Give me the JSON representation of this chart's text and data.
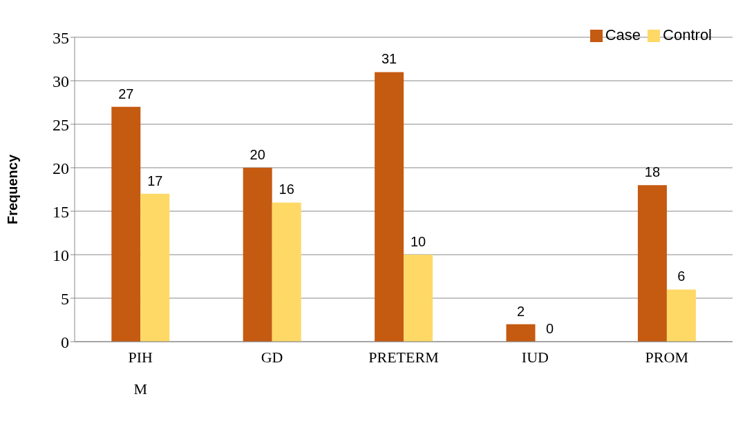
{
  "chart_data": {
    "type": "bar",
    "ylabel": "Frequency",
    "categories": [
      "PIH M",
      "GD",
      "PRETERM",
      "IUD",
      "PROM"
    ],
    "series": [
      {
        "name": "Case",
        "color": "#c55a11",
        "values": [
          27,
          20,
          31,
          2,
          18
        ]
      },
      {
        "name": "Control",
        "color": "#ffd966",
        "values": [
          17,
          16,
          10,
          0,
          6
        ]
      }
    ],
    "ylim": [
      0,
      35
    ],
    "yticks": [
      0,
      5,
      10,
      15,
      20,
      25,
      30,
      35
    ],
    "grid": "y",
    "legend": "top right",
    "data_labels": true
  }
}
